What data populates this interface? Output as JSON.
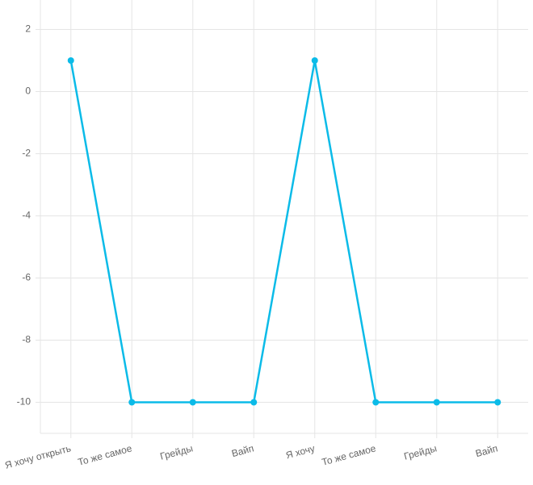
{
  "chart_data": {
    "type": "line",
    "categories": [
      "Я хочу открыть",
      "То же самое",
      "Грейды",
      "Вайп",
      "Я хочу",
      "То же самое",
      "Грейды",
      "Вайп"
    ],
    "series": [
      {
        "color": "#0bbbe8",
        "values": [
          1,
          -10,
          -10,
          -10,
          1,
          -10,
          -10,
          -10
        ]
      }
    ],
    "ylim": [
      -11,
      3
    ],
    "yticks": [
      2,
      0,
      -2,
      -4,
      -6,
      -8,
      -10
    ],
    "grid": true
  }
}
